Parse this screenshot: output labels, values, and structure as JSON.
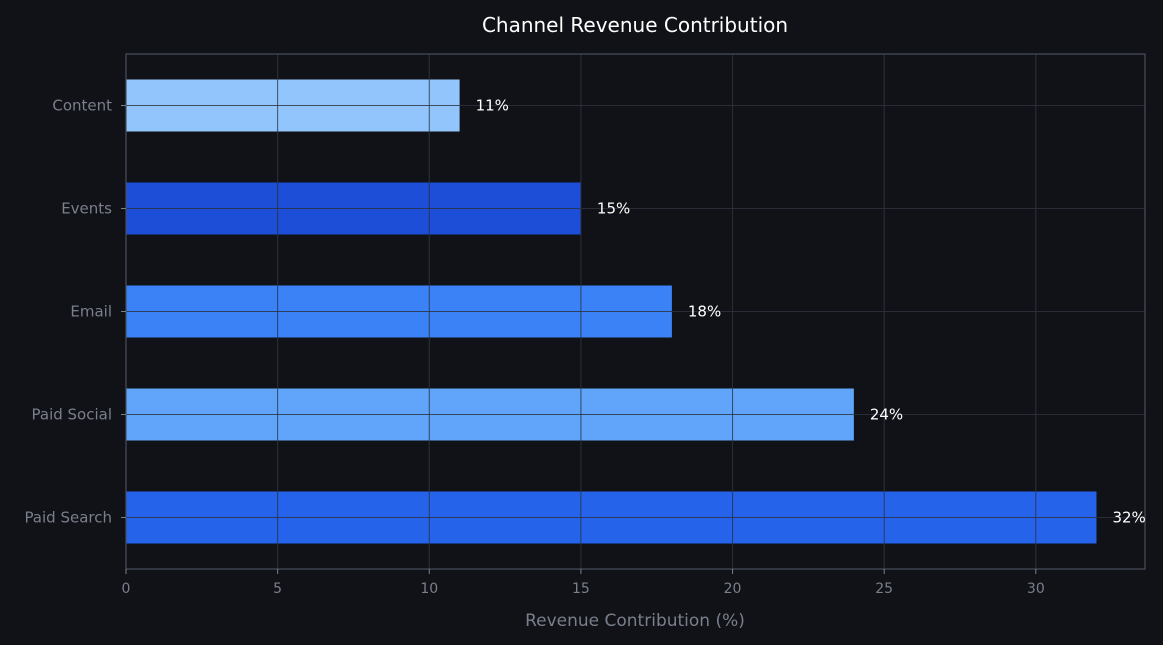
{
  "chart_data": {
    "type": "bar",
    "orientation": "horizontal",
    "title": "Channel Revenue Contribution",
    "xlabel": "Revenue Contribution (%)",
    "ylabel": "",
    "xlim": [
      0,
      33.6
    ],
    "xticks": [
      0,
      5,
      10,
      15,
      20,
      25,
      30
    ],
    "grid": true,
    "categories": [
      "Paid Search",
      "Paid Social",
      "Email",
      "Events",
      "Content"
    ],
    "values": [
      32,
      24,
      18,
      15,
      11
    ],
    "data_labels": [
      "32%",
      "24%",
      "18%",
      "15%",
      "11%"
    ],
    "colors": [
      "#2563eb",
      "#60a5fa",
      "#3b82f6",
      "#1d4ed8",
      "#93c5fd"
    ]
  },
  "colors": {
    "background": "#101217",
    "text": "#ffffff",
    "muted": "#7a7f8c"
  }
}
